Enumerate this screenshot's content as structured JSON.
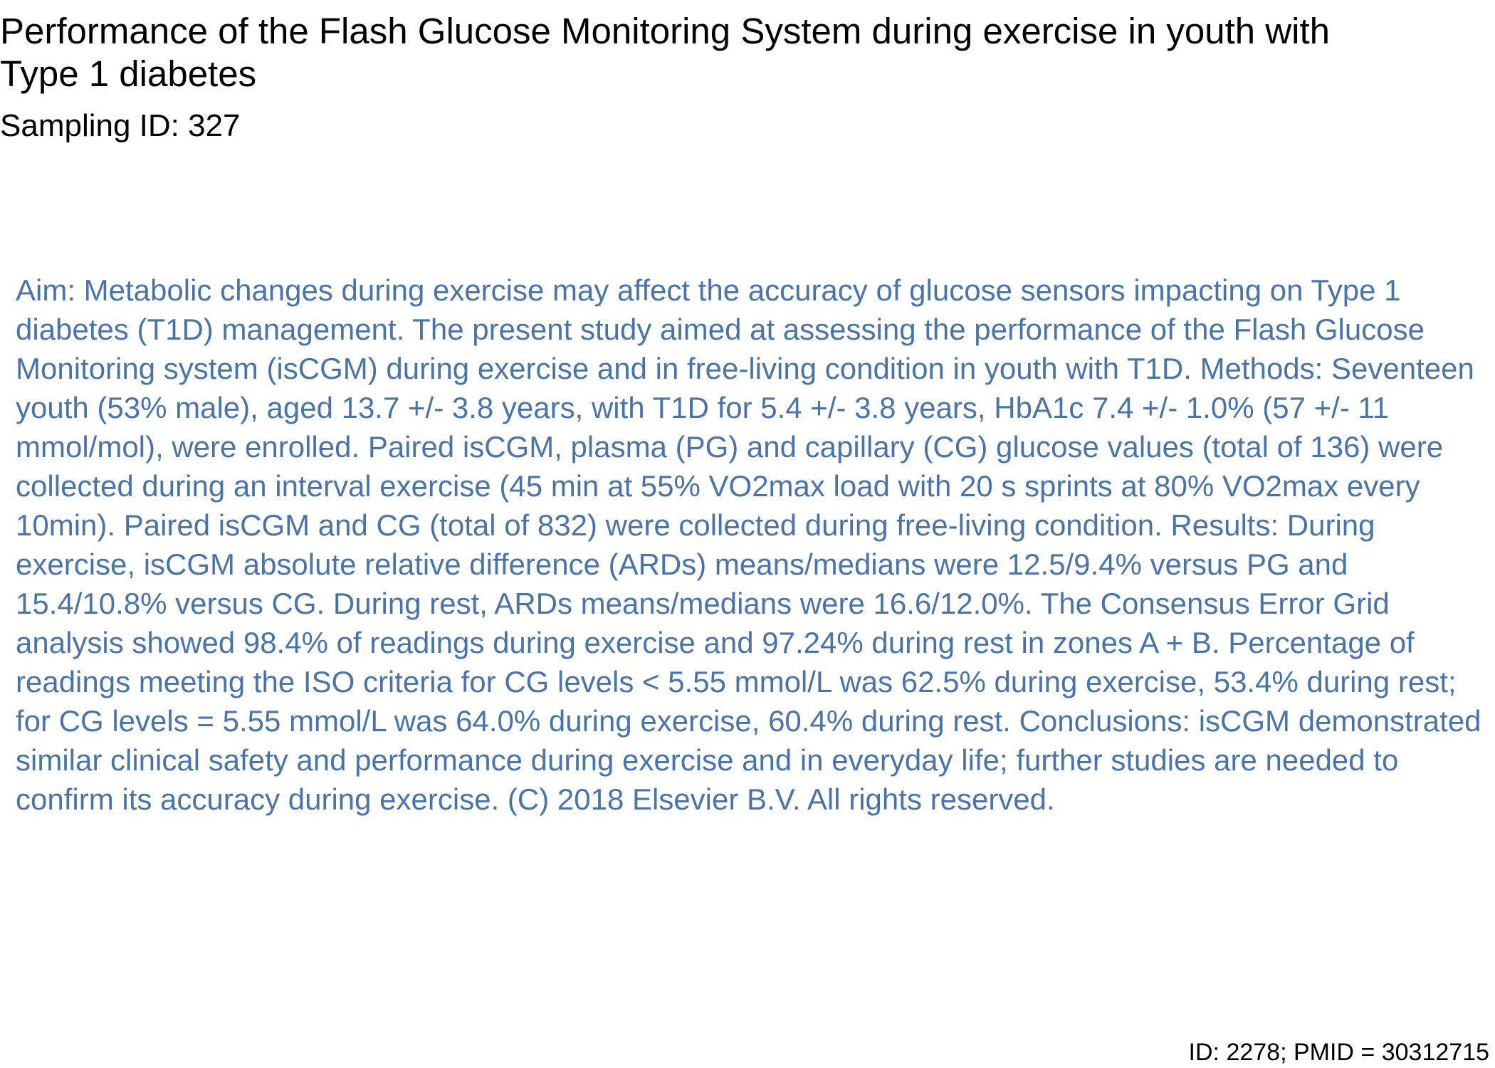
{
  "document": {
    "title": "Performance of the Flash Glucose Monitoring System during exercise in youth with Type 1 diabetes",
    "sampling_id": "Sampling ID: 327",
    "abstract": "Aim: Metabolic changes during exercise may affect the accuracy of glucose sensors impacting on Type 1 diabetes (T1D) management. The present study aimed at assessing the performance of the Flash Glucose Monitoring system (isCGM) during exercise and in free-living condition in youth with T1D. Methods: Seventeen youth (53% male), aged 13.7 +/- 3.8 years, with T1D for 5.4 +/- 3.8 years, HbA1c 7.4 +/- 1.0% (57 +/- 11 mmol/mol), were enrolled. Paired isCGM, plasma (PG) and capillary (CG) glucose values (total of 136) were collected during an interval exercise (45 min at 55% VO2max load with 20 s sprints at 80% VO2max every 10min). Paired isCGM and CG (total of 832) were collected during free-living condition. Results: During exercise, isCGM absolute relative difference (ARDs) means/medians were 12.5/9.4% versus PG and 15.4/10.8% versus CG. During rest, ARDs means/medians were 16.6/12.0%. The Consensus Error Grid analysis showed 98.4% of readings during exercise and 97.24% during rest in zones A + B. Percentage of readings meeting the ISO criteria for CG levels < 5.55 mmol/L was 62.5% during exercise, 53.4% during rest; for CG levels = 5.55 mmol/L was 64.0% during exercise, 60.4% during rest. Conclusions: isCGM demonstrated similar clinical safety and performance during exercise and in everyday life; further studies are needed to confirm its accuracy during exercise. (C) 2018 Elsevier B.V. All rights reserved.",
    "footer_id": "ID: 2278; PMID = 30312715"
  },
  "colors": {
    "title_text": "#000000",
    "abstract_text": "#4a74a8",
    "background": "#ffffff"
  }
}
